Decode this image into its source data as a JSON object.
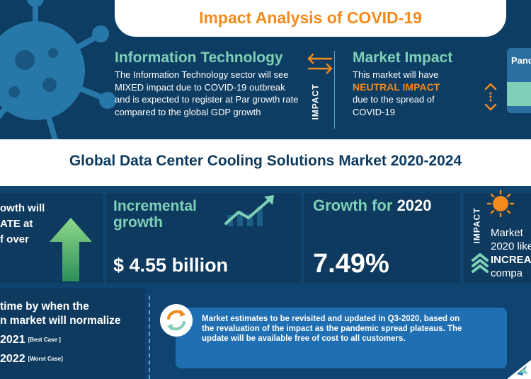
{
  "header": {
    "title": "Impact Analysis of COVID-19"
  },
  "it_sector": {
    "heading": "Information Technology",
    "body": "The Information Technology sector will see MIXED  impact due to COVID-19 outbreak and is expected to register at Par growth rate compared to the global GDP growth"
  },
  "market_impact": {
    "heading": "Market Impact",
    "body_before": "This market will have",
    "emphasis": "NEUTRAL IMPACT",
    "body_after": "due to the spread of COVID-19"
  },
  "impact_label": "IMPACT",
  "pandemic_card": {
    "text": "Pand"
  },
  "market_title": "Global Data Center Cooling Solutions Market 2020-2024",
  "left_panel": {
    "lines": [
      "owth will",
      "ATE at",
      "f over"
    ]
  },
  "incremental": {
    "line1": "Incremental",
    "line2": "growth",
    "value": "$ 4.55 billion"
  },
  "growth": {
    "label": "Growth for",
    "year": "2020",
    "value": "7.49%"
  },
  "right_panel": {
    "line1": "Market",
    "line2": "2020 like",
    "emphasis": "INCREA",
    "line3": "compa"
  },
  "normalize": {
    "line1": "time by when the",
    "line2": "n market will normalize",
    "best_year": "2021",
    "best_tag": "[Best Case ]",
    "worst_year": "2022",
    "worst_tag": "[Worst Case]"
  },
  "note": {
    "text": "Market estimates to be revisited and updated in Q3-2020, based on the revaluation of the impact as the pandemic spread plateaus. The update will be available free of cost to all customers."
  },
  "colors": {
    "navy": "#0d3a5e",
    "accent_orange": "#f28a1d",
    "accent_green": "#7fd0b8",
    "note_blue": "#1f6fb2"
  },
  "icons": [
    "virus-icon",
    "swap-arrows-icon",
    "up-down-arrows-icon",
    "up-arrow-icon",
    "trend-up-icon",
    "sun-icon",
    "chevron-up-icon",
    "refresh-arrows-icon",
    "logo-icon"
  ]
}
